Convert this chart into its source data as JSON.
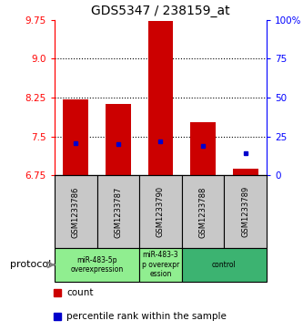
{
  "title": "GDS5347 / 238159_at",
  "samples": [
    "GSM1233786",
    "GSM1233787",
    "GSM1233790",
    "GSM1233788",
    "GSM1233789"
  ],
  "count_values": [
    8.22,
    8.12,
    9.73,
    7.78,
    6.88
  ],
  "count_bottom": [
    6.75,
    6.75,
    6.75,
    6.75,
    6.75
  ],
  "percentile_values": [
    7.38,
    7.35,
    7.4,
    7.32,
    7.18
  ],
  "ylim": [
    6.75,
    9.75
  ],
  "yticks_left": [
    6.75,
    7.5,
    8.25,
    9.0,
    9.75
  ],
  "yticks_right_vals": [
    0,
    25,
    50,
    75,
    100
  ],
  "yticks_right_labels": [
    "0",
    "25",
    "50",
    "75",
    "100%"
  ],
  "bar_color": "#CC0000",
  "dot_color": "#0000CC",
  "bg_color": "#C8C8C8",
  "group_defs": [
    {
      "cols": [
        0,
        1
      ],
      "label": "miR-483-5p\noverexpression",
      "color": "#90EE90"
    },
    {
      "cols": [
        2
      ],
      "label": "miR-483-3\np overexpr\nession",
      "color": "#90EE90"
    },
    {
      "cols": [
        3,
        4
      ],
      "label": "control",
      "color": "#3CB371"
    }
  ],
  "protocol_label": "protocol",
  "legend_count_label": "count",
  "legend_percentile_label": "percentile rank within the sample",
  "figsize": [
    3.33,
    3.63
  ],
  "dpi": 100
}
